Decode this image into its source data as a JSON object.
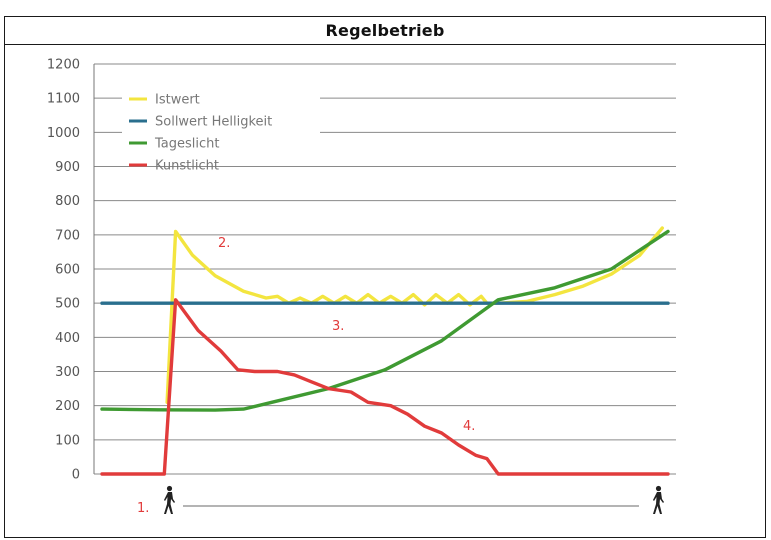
{
  "title": "Regelbetrieb",
  "chart_data": {
    "type": "line",
    "title": "Regelbetrieb",
    "xlabel": "",
    "ylabel": "",
    "ylim": [
      0,
      1200
    ],
    "yticks": [
      0,
      100,
      200,
      300,
      400,
      500,
      600,
      700,
      800,
      900,
      1000,
      1100,
      1200
    ],
    "xlim": [
      0,
      100
    ],
    "grid": true,
    "legend_placement": "top-left",
    "series": [
      {
        "name": "Istwert",
        "color": "#f3e53f",
        "x": [
          11.5,
          13,
          16,
          20,
          25,
          29,
          31,
          33,
          35,
          37,
          39,
          41,
          43,
          45,
          47,
          49,
          51,
          53,
          55,
          57,
          59,
          61,
          63,
          65,
          67,
          68,
          70,
          75,
          80,
          85,
          90,
          95,
          99
        ],
        "y": [
          210,
          710,
          640,
          580,
          535,
          515,
          520,
          500,
          515,
          500,
          520,
          500,
          520,
          500,
          525,
          500,
          520,
          500,
          525,
          495,
          525,
          500,
          525,
          495,
          520,
          500,
          500,
          505,
          525,
          550,
          585,
          640,
          720
        ]
      },
      {
        "name": "Sollwert Helligkeit",
        "color": "#2a6f8e",
        "x": [
          0,
          100
        ],
        "y": [
          500,
          500
        ]
      },
      {
        "name": "Tageslicht",
        "color": "#3f9a32",
        "x": [
          0,
          10,
          20,
          25,
          30,
          40,
          50,
          60,
          70,
          80,
          90,
          100
        ],
        "y": [
          190,
          188,
          187,
          190,
          210,
          250,
          305,
          390,
          510,
          545,
          600,
          710
        ]
      },
      {
        "name": "Kunstlicht",
        "color": "#e13b3b",
        "x": [
          0,
          11,
          13,
          17,
          21,
          24,
          27,
          31,
          34,
          37,
          40,
          44,
          47,
          51,
          54,
          57,
          60,
          63,
          66,
          68,
          70,
          100
        ],
        "y": [
          0,
          0,
          510,
          420,
          360,
          305,
          300,
          300,
          290,
          270,
          250,
          240,
          210,
          200,
          175,
          140,
          120,
          85,
          55,
          45,
          0,
          0
        ]
      }
    ],
    "annotations": [
      "1.",
      "2.",
      "3.",
      "4."
    ]
  },
  "legend": {
    "items": [
      {
        "label": "Istwert",
        "color": "#f3e53f"
      },
      {
        "label": "Sollwert Helligkeit",
        "color": "#2a6f8e"
      },
      {
        "label": "Tageslicht",
        "color": "#3f9a32"
      },
      {
        "label": "Kunstlicht",
        "color": "#e13b3b"
      }
    ]
  },
  "annotations": {
    "a1": "1.",
    "a2": "2.",
    "a3": "3.",
    "a4": "4.",
    "color": "#e13b3b"
  },
  "icons": {
    "person_start": "walking-person-icon",
    "person_end": "walking-person-icon"
  }
}
